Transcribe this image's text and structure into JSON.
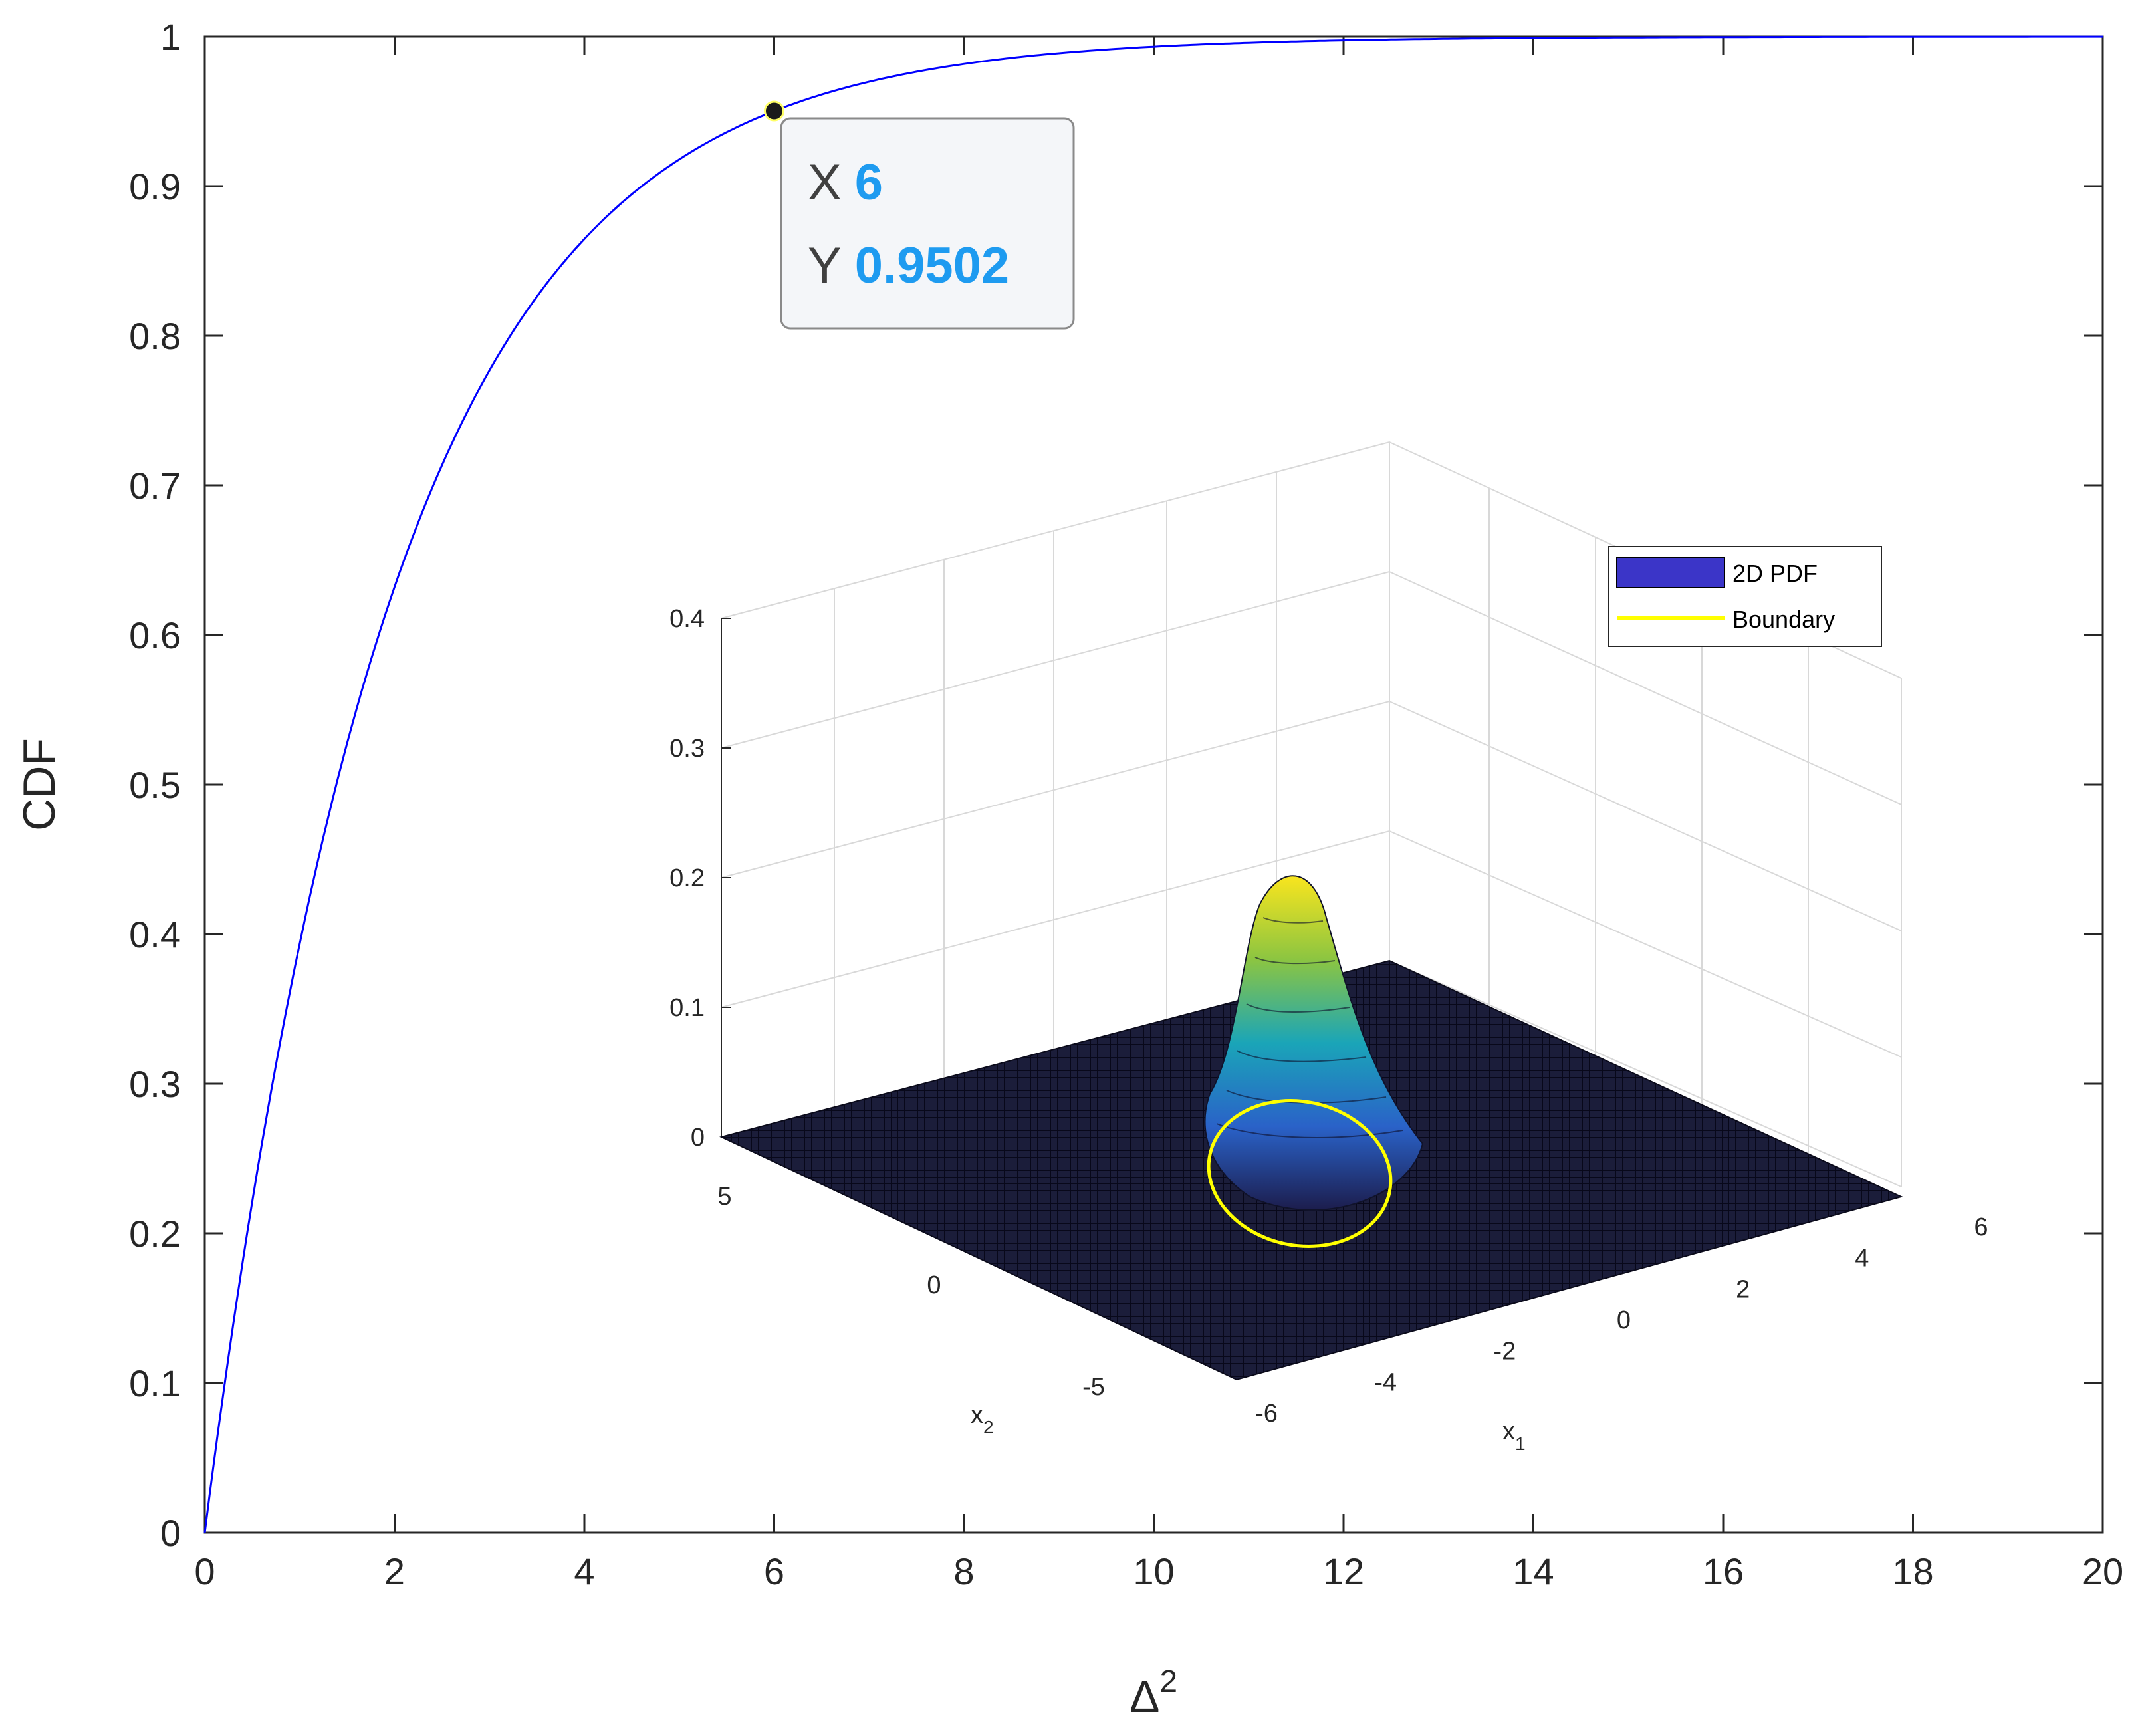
{
  "chart_data": [
    {
      "type": "line",
      "title": "",
      "xlabel": "Δ",
      "xlabel_superscript": "2",
      "ylabel": "CDF",
      "xlim": [
        0,
        20
      ],
      "ylim": [
        0,
        1
      ],
      "xticks": [
        "0",
        "2",
        "4",
        "6",
        "8",
        "10",
        "12",
        "14",
        "16",
        "18",
        "20"
      ],
      "yticks": [
        "0",
        "0.1",
        "0.2",
        "0.3",
        "0.4",
        "0.5",
        "0.6",
        "0.7",
        "0.8",
        "0.9",
        "1"
      ],
      "grid": false,
      "series": [
        {
          "color": "#0000ff",
          "function": "chi-square CDF, 2 degrees of freedom",
          "x": [
            0,
            0.25,
            0.5,
            0.75,
            1,
            1.5,
            2,
            2.5,
            3,
            3.5,
            4,
            4.5,
            5,
            5.5,
            6,
            7,
            8,
            9,
            10,
            11,
            12,
            13,
            14,
            15,
            16,
            17,
            18,
            19,
            20
          ],
          "y": [
            0,
            0.1175,
            0.2212,
            0.3127,
            0.3935,
            0.5276,
            0.6321,
            0.7135,
            0.7769,
            0.8262,
            0.8647,
            0.8946,
            0.9179,
            0.9361,
            0.9502,
            0.9698,
            0.9817,
            0.9889,
            0.9933,
            0.9959,
            0.9975,
            0.9985,
            0.9991,
            0.9994,
            0.9997,
            0.9998,
            0.9999,
            0.9999,
            1.0
          ]
        }
      ],
      "datatip": {
        "x_key": "X",
        "x_value": "6",
        "y_key": "Y",
        "y_value": "0.9502"
      }
    },
    {
      "type": "surface",
      "x_label": "x",
      "x_label_subscript": "1",
      "y_label": "x",
      "y_label_subscript": "2",
      "z_ticks": [
        "0",
        "0.1",
        "0.2",
        "0.3",
        "0.4"
      ],
      "x_ticks": [
        "-6",
        "-4",
        "-2",
        "0",
        "2",
        "4",
        "6"
      ],
      "y_ticks": [
        "-5",
        "0",
        "5"
      ],
      "zlim": [
        0,
        0.4
      ],
      "peak_value": 0.159,
      "legend": [
        {
          "label": "2D PDF",
          "color": "#3b35c8"
        },
        {
          "label": "Boundary",
          "color": "#ffff00"
        }
      ],
      "colormap": "parula"
    }
  ]
}
